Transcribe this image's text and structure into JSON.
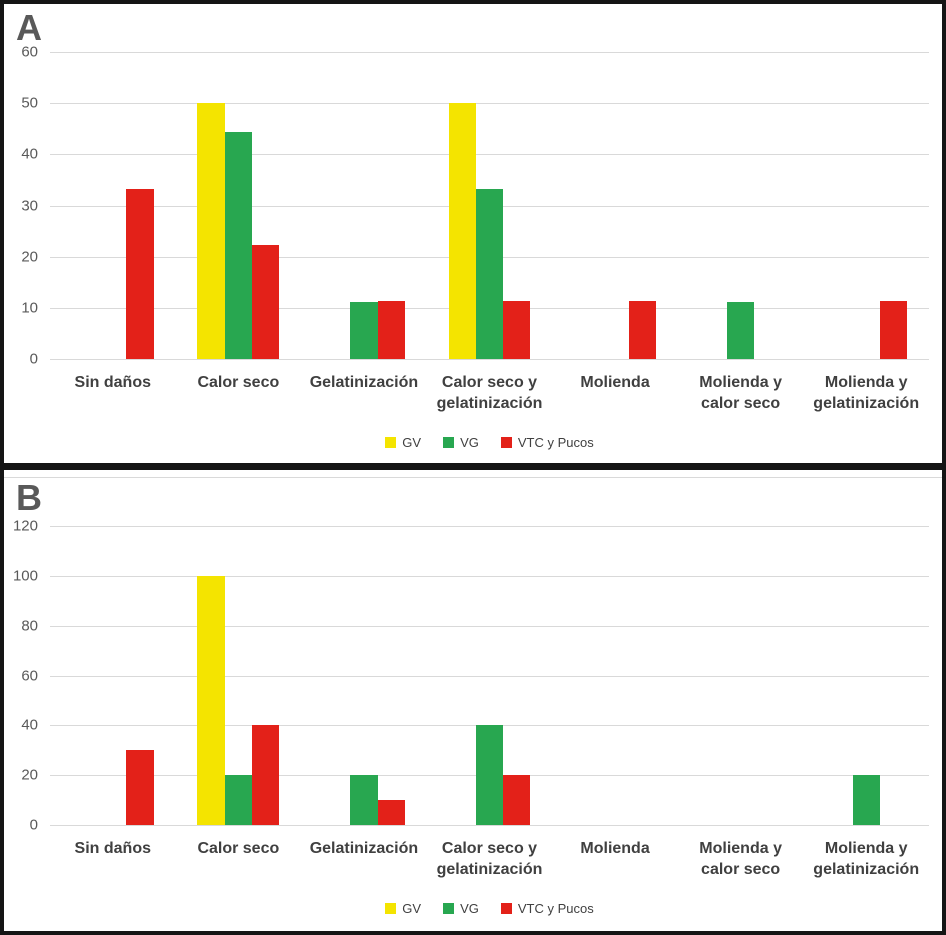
{
  "figure_title": "",
  "chart_data": [
    {
      "type": "bar",
      "panel_label": "A",
      "title": "",
      "xlabel": "",
      "ylabel": "",
      "categories": [
        "Sin daños",
        "Calor seco",
        "Gelatinización",
        "Calor seco y gelatinización",
        "Molienda",
        "Molienda y calor seco",
        "Molienda y gelatinización"
      ],
      "series": [
        {
          "name": "GV",
          "color": "#f4e400",
          "values": [
            0,
            50,
            0,
            50,
            0,
            0,
            0
          ]
        },
        {
          "name": "VG",
          "color": "#28a750",
          "values": [
            0,
            44.4,
            11.1,
            33.3,
            0,
            11.1,
            0
          ]
        },
        {
          "name": "VTC y Pucos",
          "color": "#e32119",
          "values": [
            33.3,
            22.2,
            11.3,
            11.3,
            11.3,
            0,
            11.3
          ]
        }
      ],
      "ylim": [
        0,
        60
      ],
      "yticks": [
        0,
        10,
        20,
        30,
        40,
        50,
        60
      ],
      "grid": true,
      "legend_position": "bottom"
    },
    {
      "type": "bar",
      "panel_label": "B",
      "title": "",
      "xlabel": "",
      "ylabel": "",
      "categories": [
        "Sin daños",
        "Calor seco",
        "Gelatinización",
        "Calor seco y gelatinización",
        "Molienda",
        "Molienda y calor seco",
        "Molienda y gelatinización"
      ],
      "series": [
        {
          "name": "GV",
          "color": "#f4e400",
          "values": [
            0,
            100,
            0,
            0,
            0,
            0,
            0
          ]
        },
        {
          "name": "VG",
          "color": "#28a750",
          "values": [
            0,
            20,
            20,
            40,
            0,
            0,
            20
          ]
        },
        {
          "name": "VTC y Pucos",
          "color": "#e32119",
          "values": [
            30,
            40,
            10,
            20,
            0,
            0,
            0
          ]
        }
      ],
      "ylim": [
        0,
        120
      ],
      "yticks": [
        0,
        20,
        40,
        60,
        80,
        100,
        120
      ],
      "grid": true,
      "legend_position": "bottom"
    }
  ],
  "colors": {
    "gv": "#f4e400",
    "vg": "#28a750",
    "vtc_y_pucos": "#e32119",
    "gridline": "#d9d9d9",
    "axis_text": "#595959",
    "category_text": "#404040",
    "frame": "#151515"
  }
}
